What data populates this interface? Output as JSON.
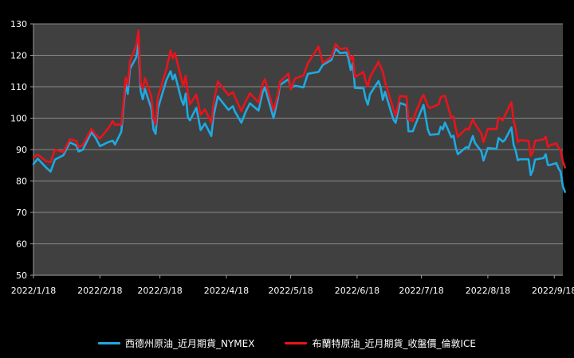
{
  "chart_data": {
    "type": "line",
    "title": "",
    "xlabel": "",
    "ylabel": "",
    "ylim": [
      50,
      130
    ],
    "y_ticks": [
      50,
      60,
      70,
      80,
      90,
      100,
      110,
      120,
      130
    ],
    "x_tick_labels": [
      "2022/1/18",
      "2022/2/18",
      "2022/3/18",
      "2022/4/18",
      "2022/5/18",
      "2022/6/18",
      "2022/7/18",
      "2022/8/18",
      "2022/9/18"
    ],
    "x_range": [
      "2022-01-18",
      "2022-09-22"
    ],
    "grid": "horizontal",
    "legend_position": "bottom",
    "colors": {
      "background": "#000000",
      "plot_area": "#404040",
      "grid": "#8a8a8a",
      "axis_text": "#ffffff"
    },
    "series": [
      {
        "name": "西德州原油_近月期貨_NYMEX",
        "color": "#1fa9e1",
        "points": [
          [
            "2022-01-18",
            85.4
          ],
          [
            "2022-01-20",
            87.1
          ],
          [
            "2022-01-24",
            84.2
          ],
          [
            "2022-01-26",
            83.0
          ],
          [
            "2022-01-28",
            86.8
          ],
          [
            "2022-02-01",
            88.2
          ],
          [
            "2022-02-04",
            92.3
          ],
          [
            "2022-02-07",
            91.3
          ],
          [
            "2022-02-08",
            89.4
          ],
          [
            "2022-02-10",
            89.9
          ],
          [
            "2022-02-14",
            95.5
          ],
          [
            "2022-02-16",
            93.7
          ],
          [
            "2022-02-18",
            91.1
          ],
          [
            "2022-02-22",
            92.4
          ],
          [
            "2022-02-24",
            92.8
          ],
          [
            "2022-02-25",
            91.6
          ],
          [
            "2022-02-28",
            95.7
          ],
          [
            "2022-03-01",
            103.4
          ],
          [
            "2022-03-02",
            110.6
          ],
          [
            "2022-03-03",
            107.7
          ],
          [
            "2022-03-04",
            115.7
          ],
          [
            "2022-03-07",
            119.4
          ],
          [
            "2022-03-08",
            123.7
          ],
          [
            "2022-03-09",
            108.7
          ],
          [
            "2022-03-10",
            106.0
          ],
          [
            "2022-03-11",
            109.3
          ],
          [
            "2022-03-14",
            103.0
          ],
          [
            "2022-03-15",
            96.4
          ],
          [
            "2022-03-16",
            95.0
          ],
          [
            "2022-03-17",
            102.9
          ],
          [
            "2022-03-21",
            112.1
          ],
          [
            "2022-03-23",
            114.9
          ],
          [
            "2022-03-24",
            112.3
          ],
          [
            "2022-03-25",
            113.9
          ],
          [
            "2022-03-28",
            105.9
          ],
          [
            "2022-03-29",
            104.2
          ],
          [
            "2022-03-30",
            107.8
          ],
          [
            "2022-03-31",
            100.3
          ],
          [
            "2022-04-01",
            99.3
          ],
          [
            "2022-04-04",
            103.3
          ],
          [
            "2022-04-06",
            96.2
          ],
          [
            "2022-04-08",
            98.3
          ],
          [
            "2022-04-11",
            94.3
          ],
          [
            "2022-04-12",
            100.6
          ],
          [
            "2022-04-14",
            106.9
          ],
          [
            "2022-04-19",
            102.6
          ],
          [
            "2022-04-21",
            103.8
          ],
          [
            "2022-04-22",
            102.1
          ],
          [
            "2022-04-25",
            98.5
          ],
          [
            "2022-04-27",
            102.0
          ],
          [
            "2022-04-29",
            104.7
          ],
          [
            "2022-05-03",
            102.4
          ],
          [
            "2022-05-05",
            108.3
          ],
          [
            "2022-05-06",
            109.8
          ],
          [
            "2022-05-10",
            100.0
          ],
          [
            "2022-05-12",
            106.1
          ],
          [
            "2022-05-13",
            110.5
          ],
          [
            "2022-05-17",
            112.4
          ],
          [
            "2022-05-18",
            109.6
          ],
          [
            "2022-05-20",
            110.3
          ],
          [
            "2022-05-24",
            109.8
          ],
          [
            "2022-05-26",
            114.1
          ],
          [
            "2022-05-31",
            114.7
          ],
          [
            "2022-06-02",
            116.9
          ],
          [
            "2022-06-06",
            118.5
          ],
          [
            "2022-06-08",
            122.1
          ],
          [
            "2022-06-10",
            120.7
          ],
          [
            "2022-06-13",
            120.9
          ],
          [
            "2022-06-14",
            118.9
          ],
          [
            "2022-06-15",
            115.3
          ],
          [
            "2022-06-16",
            117.6
          ],
          [
            "2022-06-17",
            109.6
          ],
          [
            "2022-06-21",
            109.5
          ],
          [
            "2022-06-22",
            106.2
          ],
          [
            "2022-06-23",
            104.3
          ],
          [
            "2022-06-24",
            107.6
          ],
          [
            "2022-06-28",
            111.8
          ],
          [
            "2022-06-29",
            109.8
          ],
          [
            "2022-06-30",
            105.8
          ],
          [
            "2022-07-01",
            108.4
          ],
          [
            "2022-07-05",
            99.5
          ],
          [
            "2022-07-06",
            98.5
          ],
          [
            "2022-07-08",
            104.8
          ],
          [
            "2022-07-11",
            104.1
          ],
          [
            "2022-07-12",
            95.8
          ],
          [
            "2022-07-14",
            95.8
          ],
          [
            "2022-07-15",
            97.6
          ],
          [
            "2022-07-18",
            102.6
          ],
          [
            "2022-07-19",
            104.2
          ],
          [
            "2022-07-21",
            96.4
          ],
          [
            "2022-07-22",
            94.7
          ],
          [
            "2022-07-26",
            94.9
          ],
          [
            "2022-07-27",
            97.3
          ],
          [
            "2022-07-28",
            96.4
          ],
          [
            "2022-07-29",
            98.6
          ],
          [
            "2022-08-01",
            93.9
          ],
          [
            "2022-08-02",
            94.4
          ],
          [
            "2022-08-03",
            90.7
          ],
          [
            "2022-08-04",
            88.5
          ],
          [
            "2022-08-08",
            90.8
          ],
          [
            "2022-08-09",
            90.5
          ],
          [
            "2022-08-11",
            94.3
          ],
          [
            "2022-08-12",
            92.1
          ],
          [
            "2022-08-15",
            89.4
          ],
          [
            "2022-08-16",
            86.5
          ],
          [
            "2022-08-18",
            90.5
          ],
          [
            "2022-08-22",
            90.2
          ],
          [
            "2022-08-23",
            93.7
          ],
          [
            "2022-08-25",
            92.5
          ],
          [
            "2022-08-26",
            93.1
          ],
          [
            "2022-08-29",
            97.0
          ],
          [
            "2022-08-30",
            91.6
          ],
          [
            "2022-08-31",
            89.6
          ],
          [
            "2022-09-01",
            86.6
          ],
          [
            "2022-09-02",
            86.9
          ],
          [
            "2022-09-06",
            86.9
          ],
          [
            "2022-09-07",
            81.9
          ],
          [
            "2022-09-08",
            83.5
          ],
          [
            "2022-09-09",
            86.8
          ],
          [
            "2022-09-13",
            87.3
          ],
          [
            "2022-09-14",
            88.5
          ],
          [
            "2022-09-15",
            85.1
          ],
          [
            "2022-09-16",
            85.1
          ],
          [
            "2022-09-19",
            85.7
          ],
          [
            "2022-09-20",
            84.0
          ],
          [
            "2022-09-21",
            82.9
          ],
          [
            "2022-09-22",
            78.3
          ],
          [
            "2022-09-23",
            76.5
          ]
        ]
      },
      {
        "name": "布蘭特原油_近月期貨_收盤價_倫敦ICE",
        "color": "#e8141c",
        "points": [
          [
            "2022-01-18",
            87.5
          ],
          [
            "2022-01-20",
            88.4
          ],
          [
            "2022-01-24",
            86.3
          ],
          [
            "2022-01-26",
            86.0
          ],
          [
            "2022-01-28",
            90.0
          ],
          [
            "2022-02-01",
            89.2
          ],
          [
            "2022-02-04",
            93.3
          ],
          [
            "2022-02-07",
            92.7
          ],
          [
            "2022-02-08",
            90.8
          ],
          [
            "2022-02-10",
            91.4
          ],
          [
            "2022-02-14",
            96.5
          ],
          [
            "2022-02-16",
            94.8
          ],
          [
            "2022-02-18",
            93.5
          ],
          [
            "2022-02-22",
            96.8
          ],
          [
            "2022-02-24",
            99.1
          ],
          [
            "2022-02-25",
            97.9
          ],
          [
            "2022-02-28",
            98.0
          ],
          [
            "2022-03-01",
            104.9
          ],
          [
            "2022-03-02",
            112.9
          ],
          [
            "2022-03-03",
            110.5
          ],
          [
            "2022-03-04",
            118.1
          ],
          [
            "2022-03-07",
            123.2
          ],
          [
            "2022-03-08",
            127.9
          ],
          [
            "2022-03-09",
            111.1
          ],
          [
            "2022-03-10",
            109.3
          ],
          [
            "2022-03-11",
            112.7
          ],
          [
            "2022-03-14",
            106.9
          ],
          [
            "2022-03-15",
            99.9
          ],
          [
            "2022-03-16",
            98.0
          ],
          [
            "2022-03-17",
            106.6
          ],
          [
            "2022-03-21",
            115.6
          ],
          [
            "2022-03-23",
            121.6
          ],
          [
            "2022-03-24",
            119.0
          ],
          [
            "2022-03-25",
            120.7
          ],
          [
            "2022-03-28",
            112.5
          ],
          [
            "2022-03-29",
            110.2
          ],
          [
            "2022-03-30",
            113.5
          ],
          [
            "2022-03-31",
            107.9
          ],
          [
            "2022-04-01",
            104.4
          ],
          [
            "2022-04-04",
            107.5
          ],
          [
            "2022-04-06",
            101.1
          ],
          [
            "2022-04-08",
            102.8
          ],
          [
            "2022-04-11",
            98.5
          ],
          [
            "2022-04-12",
            104.6
          ],
          [
            "2022-04-14",
            111.7
          ],
          [
            "2022-04-19",
            107.3
          ],
          [
            "2022-04-21",
            108.3
          ],
          [
            "2022-04-22",
            106.7
          ],
          [
            "2022-04-25",
            102.3
          ],
          [
            "2022-04-27",
            105.3
          ],
          [
            "2022-04-29",
            107.9
          ],
          [
            "2022-05-03",
            105.0
          ],
          [
            "2022-05-05",
            111.0
          ],
          [
            "2022-05-06",
            112.4
          ],
          [
            "2022-05-10",
            102.5
          ],
          [
            "2022-05-12",
            107.5
          ],
          [
            "2022-05-13",
            111.6
          ],
          [
            "2022-05-17",
            114.2
          ],
          [
            "2022-05-18",
            109.1
          ],
          [
            "2022-05-20",
            112.6
          ],
          [
            "2022-05-24",
            113.6
          ],
          [
            "2022-05-26",
            117.4
          ],
          [
            "2022-05-31",
            122.8
          ],
          [
            "2022-06-02",
            117.6
          ],
          [
            "2022-06-06",
            119.5
          ],
          [
            "2022-06-08",
            123.6
          ],
          [
            "2022-06-10",
            122.0
          ],
          [
            "2022-06-13",
            122.3
          ],
          [
            "2022-06-14",
            121.2
          ],
          [
            "2022-06-15",
            118.5
          ],
          [
            "2022-06-16",
            119.8
          ],
          [
            "2022-06-17",
            113.1
          ],
          [
            "2022-06-21",
            114.7
          ],
          [
            "2022-06-22",
            111.7
          ],
          [
            "2022-06-23",
            110.1
          ],
          [
            "2022-06-24",
            113.1
          ],
          [
            "2022-06-28",
            117.9
          ],
          [
            "2022-06-29",
            116.3
          ],
          [
            "2022-06-30",
            114.8
          ],
          [
            "2022-07-01",
            111.6
          ],
          [
            "2022-07-05",
            102.8
          ],
          [
            "2022-07-06",
            100.7
          ],
          [
            "2022-07-08",
            107.0
          ],
          [
            "2022-07-11",
            106.9
          ],
          [
            "2022-07-12",
            99.5
          ],
          [
            "2022-07-14",
            99.1
          ],
          [
            "2022-07-15",
            101.2
          ],
          [
            "2022-07-18",
            106.3
          ],
          [
            "2022-07-19",
            107.4
          ],
          [
            "2022-07-21",
            103.9
          ],
          [
            "2022-07-22",
            103.2
          ],
          [
            "2022-07-26",
            104.4
          ],
          [
            "2022-07-27",
            106.6
          ],
          [
            "2022-07-28",
            107.1
          ],
          [
            "2022-07-29",
            107.1
          ],
          [
            "2022-08-01",
            100.0
          ],
          [
            "2022-08-02",
            100.5
          ],
          [
            "2022-08-03",
            96.8
          ],
          [
            "2022-08-04",
            94.1
          ],
          [
            "2022-08-08",
            96.7
          ],
          [
            "2022-08-09",
            96.3
          ],
          [
            "2022-08-11",
            99.6
          ],
          [
            "2022-08-12",
            98.2
          ],
          [
            "2022-08-15",
            95.1
          ],
          [
            "2022-08-16",
            92.3
          ],
          [
            "2022-08-18",
            96.6
          ],
          [
            "2022-08-22",
            96.5
          ],
          [
            "2022-08-23",
            100.2
          ],
          [
            "2022-08-25",
            99.3
          ],
          [
            "2022-08-26",
            100.9
          ],
          [
            "2022-08-29",
            105.1
          ],
          [
            "2022-08-30",
            99.3
          ],
          [
            "2022-08-31",
            96.5
          ],
          [
            "2022-09-01",
            92.4
          ],
          [
            "2022-09-02",
            93.0
          ],
          [
            "2022-09-06",
            92.8
          ],
          [
            "2022-09-07",
            88.0
          ],
          [
            "2022-09-08",
            89.2
          ],
          [
            "2022-09-09",
            92.8
          ],
          [
            "2022-09-13",
            93.2
          ],
          [
            "2022-09-14",
            94.1
          ],
          [
            "2022-09-15",
            90.8
          ],
          [
            "2022-09-16",
            91.4
          ],
          [
            "2022-09-19",
            92.0
          ],
          [
            "2022-09-20",
            90.6
          ],
          [
            "2022-09-21",
            89.8
          ],
          [
            "2022-09-22",
            86.2
          ],
          [
            "2022-09-23",
            84.3
          ]
        ]
      }
    ]
  }
}
